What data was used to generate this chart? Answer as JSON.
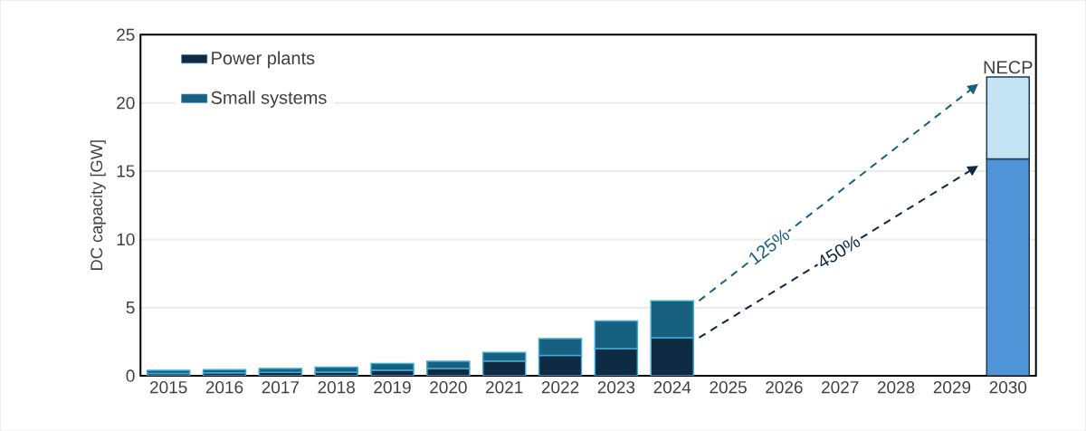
{
  "chart_data": {
    "type": "bar",
    "stacked": true,
    "ylabel": "DC capacity [GW]",
    "categories": [
      "2015",
      "2016",
      "2017",
      "2018",
      "2019",
      "2020",
      "2021",
      "2022",
      "2023",
      "2024",
      "2025",
      "2026",
      "2027",
      "2028",
      "2029",
      "2030"
    ],
    "series": [
      {
        "name": "Power plants",
        "color": "#0f2a43",
        "colors": [
          "#0f2a43",
          "#0f2a43",
          "#0f2a43",
          "#0f2a43",
          "#0f2a43",
          "#0f2a43",
          "#0f2a43",
          "#0f2a43",
          "#0f2a43",
          "#0f2a43",
          "#0f2a43",
          "#0f2a43",
          "#0f2a43",
          "#0f2a43",
          "#0f2a43",
          "#5094d8"
        ],
        "values": [
          0.17,
          0.22,
          0.25,
          0.27,
          0.42,
          0.53,
          1.08,
          1.5,
          2.0,
          2.8,
          null,
          null,
          null,
          null,
          null,
          15.9
        ]
      },
      {
        "name": "Small systems",
        "color": "#17607f",
        "colors": [
          "#17607f",
          "#17607f",
          "#17607f",
          "#17607f",
          "#17607f",
          "#17607f",
          "#17607f",
          "#17607f",
          "#17607f",
          "#17607f",
          "#17607f",
          "#17607f",
          "#17607f",
          "#17607f",
          "#17607f",
          "#c4e4f4"
        ],
        "values": [
          0.23,
          0.24,
          0.28,
          0.37,
          0.48,
          0.53,
          0.64,
          1.22,
          2.02,
          2.7,
          null,
          null,
          null,
          null,
          null,
          6.0
        ]
      }
    ],
    "ylim": [
      0,
      25
    ],
    "yticks": [
      0,
      5,
      10,
      15,
      20,
      25
    ],
    "grid": "y",
    "legend": "top left",
    "annotations": [
      {
        "text": "NECP",
        "x": "2030",
        "y": 21.9
      },
      "125%",
      "450%"
    ]
  }
}
